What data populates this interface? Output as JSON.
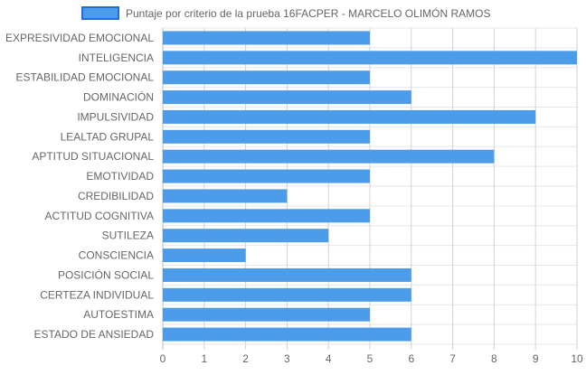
{
  "chart_data": {
    "type": "bar",
    "orientation": "horizontal",
    "categories": [
      "EXPRESIVIDAD EMOCIONAL",
      "INTELIGENCIA",
      "ESTABILIDAD EMOCIONAL",
      "DOMINACIÓN",
      "IMPULSIVIDAD",
      "LEALTAD GRUPAL",
      "APTITUD SITUACIONAL",
      "EMOTIVIDAD",
      "CREDIBILIDAD",
      "ACTITUD COGNITIVA",
      "SUTILEZA",
      "CONSCIENCIA",
      "POSICIÓN SOCIAL",
      "CERTEZA INDIVIDUAL",
      "AUTOESTIMA",
      "ESTADO DE ANSIEDAD"
    ],
    "series": [
      {
        "name": "Puntaje por criterio de la prueba 16FACPER - MARCELO OLIMÓN RAMOS",
        "values": [
          5,
          10,
          5,
          6,
          9,
          5,
          8,
          5,
          3,
          5,
          4,
          2,
          6,
          6,
          5,
          6
        ],
        "color": "#4d9ce9",
        "border_color": "#1e6fd9"
      }
    ],
    "xlim": [
      0,
      10
    ],
    "x_ticks": [
      "0",
      "1",
      "2",
      "3",
      "4",
      "5",
      "6",
      "7",
      "8",
      "9",
      "10"
    ],
    "grid": true,
    "legend_position": "top"
  }
}
